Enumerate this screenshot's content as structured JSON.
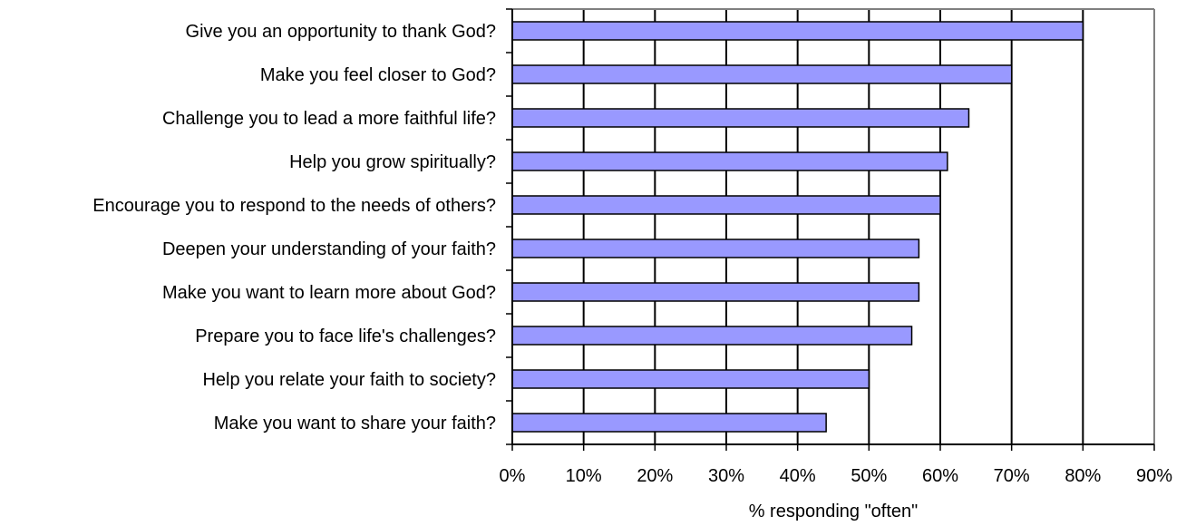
{
  "chart_data": {
    "type": "bar",
    "orientation": "horizontal",
    "categories": [
      "Give you an opportunity to thank God?",
      "Make you feel closer to God?",
      "Challenge you to lead a more faithful life?",
      "Help you grow spiritually?",
      "Encourage you to respond to the needs of others?",
      "Deepen your understanding of your faith?",
      "Make you want to learn more about God?",
      "Prepare you to face life's challenges?",
      "Help you relate your faith to society?",
      "Make you want to share your faith?"
    ],
    "values": [
      80,
      70,
      64,
      61,
      60,
      57,
      57,
      56,
      50,
      44
    ],
    "xlabel": "% responding \"often\"",
    "ylabel": "",
    "xlim": [
      0,
      90
    ],
    "xticks": [
      "0%",
      "10%",
      "20%",
      "30%",
      "40%",
      "50%",
      "60%",
      "70%",
      "80%",
      "90%"
    ],
    "grid": "vertical",
    "legend": "none",
    "colors": {
      "bar_fill": "#9999ff",
      "bar_stroke": "#000000",
      "grid": "#000000",
      "frame": "#808080"
    }
  }
}
